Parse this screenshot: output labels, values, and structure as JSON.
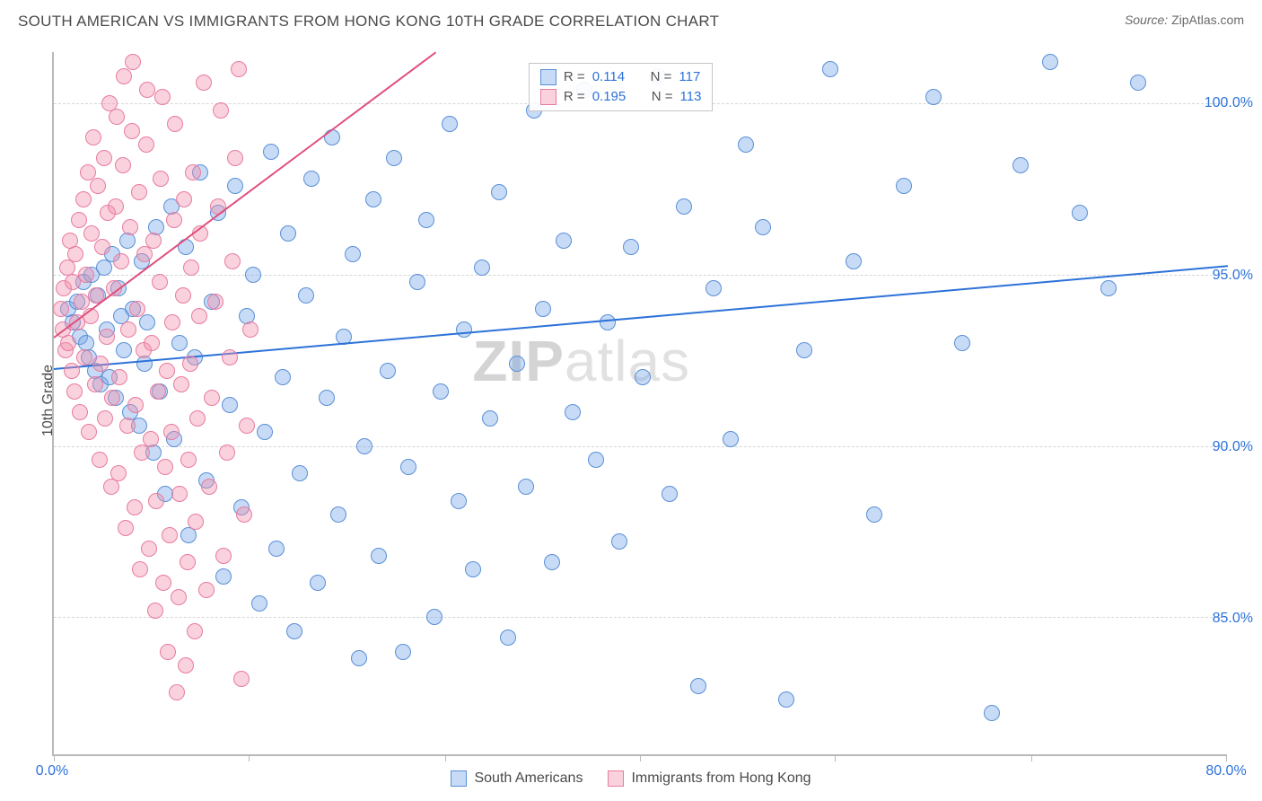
{
  "title": "SOUTH AMERICAN VS IMMIGRANTS FROM HONG KONG 10TH GRADE CORRELATION CHART",
  "source_label": "Source: ",
  "source_value": "ZipAtlas.com",
  "ylabel": "10th Grade",
  "watermark_a": "ZIP",
  "watermark_b": "atlas",
  "chart": {
    "type": "scatter",
    "background_color": "#ffffff",
    "axis_color": "#b9b9b9",
    "grid_color": "#d6d6d6",
    "tick_label_color": "#2d72d9",
    "label_fontsize": 16,
    "title_fontsize": 17,
    "xlim": [
      0,
      80
    ],
    "ylim": [
      81,
      101.5
    ],
    "xtick_positions": [
      0,
      13.3,
      26.7,
      40,
      53.3,
      66.7,
      80
    ],
    "xtick_labels": {
      "0": "0.0%",
      "80": "80.0%"
    },
    "ytick_positions": [
      85,
      90,
      95,
      100
    ],
    "ytick_labels": {
      "85": "85.0%",
      "90": "90.0%",
      "95": "95.0%",
      "100": "100.0%"
    },
    "series": [
      {
        "key": "south_americans",
        "label": "South Americans",
        "marker_fill": "rgba(114,164,232,0.40)",
        "marker_stroke": "#5a8fd6",
        "marker_radius": 9,
        "trend_color": "#2d72d9",
        "trend_width": 2,
        "trend": {
          "x1": 0,
          "y1": 92.3,
          "x2": 80,
          "y2": 95.3
        },
        "R": "0.114",
        "N": "117",
        "points": [
          [
            1.0,
            94.0
          ],
          [
            1.3,
            93.6
          ],
          [
            1.6,
            94.2
          ],
          [
            1.8,
            93.2
          ],
          [
            2.0,
            94.8
          ],
          [
            2.2,
            93.0
          ],
          [
            2.4,
            92.6
          ],
          [
            2.6,
            95.0
          ],
          [
            2.8,
            92.2
          ],
          [
            3.0,
            94.4
          ],
          [
            3.2,
            91.8
          ],
          [
            3.4,
            95.2
          ],
          [
            3.6,
            93.4
          ],
          [
            3.8,
            92.0
          ],
          [
            4.0,
            95.6
          ],
          [
            4.2,
            91.4
          ],
          [
            4.4,
            94.6
          ],
          [
            4.6,
            93.8
          ],
          [
            4.8,
            92.8
          ],
          [
            5.0,
            96.0
          ],
          [
            5.2,
            91.0
          ],
          [
            5.4,
            94.0
          ],
          [
            5.8,
            90.6
          ],
          [
            6.0,
            95.4
          ],
          [
            6.2,
            92.4
          ],
          [
            6.4,
            93.6
          ],
          [
            6.8,
            89.8
          ],
          [
            7.0,
            96.4
          ],
          [
            7.2,
            91.6
          ],
          [
            7.6,
            88.6
          ],
          [
            8.0,
            97.0
          ],
          [
            8.2,
            90.2
          ],
          [
            8.6,
            93.0
          ],
          [
            9.0,
            95.8
          ],
          [
            9.2,
            87.4
          ],
          [
            9.6,
            92.6
          ],
          [
            10.0,
            98.0
          ],
          [
            10.4,
            89.0
          ],
          [
            10.8,
            94.2
          ],
          [
            11.2,
            96.8
          ],
          [
            11.6,
            86.2
          ],
          [
            12.0,
            91.2
          ],
          [
            12.4,
            97.6
          ],
          [
            12.8,
            88.2
          ],
          [
            13.2,
            93.8
          ],
          [
            13.6,
            95.0
          ],
          [
            14.0,
            85.4
          ],
          [
            14.4,
            90.4
          ],
          [
            14.8,
            98.6
          ],
          [
            15.2,
            87.0
          ],
          [
            15.6,
            92.0
          ],
          [
            16.0,
            96.2
          ],
          [
            16.4,
            84.6
          ],
          [
            16.8,
            89.2
          ],
          [
            17.2,
            94.4
          ],
          [
            17.6,
            97.8
          ],
          [
            18.0,
            86.0
          ],
          [
            18.6,
            91.4
          ],
          [
            19.0,
            99.0
          ],
          [
            19.4,
            88.0
          ],
          [
            19.8,
            93.2
          ],
          [
            20.4,
            95.6
          ],
          [
            20.8,
            83.8
          ],
          [
            21.2,
            90.0
          ],
          [
            21.8,
            97.2
          ],
          [
            22.2,
            86.8
          ],
          [
            22.8,
            92.2
          ],
          [
            23.2,
            98.4
          ],
          [
            23.8,
            84.0
          ],
          [
            24.2,
            89.4
          ],
          [
            24.8,
            94.8
          ],
          [
            25.4,
            96.6
          ],
          [
            26.0,
            85.0
          ],
          [
            26.4,
            91.6
          ],
          [
            27.0,
            99.4
          ],
          [
            27.6,
            88.4
          ],
          [
            28.0,
            93.4
          ],
          [
            28.6,
            86.4
          ],
          [
            29.2,
            95.2
          ],
          [
            29.8,
            90.8
          ],
          [
            30.4,
            97.4
          ],
          [
            31.0,
            84.4
          ],
          [
            31.6,
            92.4
          ],
          [
            32.2,
            88.8
          ],
          [
            32.8,
            99.8
          ],
          [
            33.4,
            94.0
          ],
          [
            34.0,
            86.6
          ],
          [
            34.8,
            96.0
          ],
          [
            35.4,
            91.0
          ],
          [
            36.2,
            100.4
          ],
          [
            37.0,
            89.6
          ],
          [
            37.8,
            93.6
          ],
          [
            38.6,
            87.2
          ],
          [
            39.4,
            95.8
          ],
          [
            40.2,
            92.0
          ],
          [
            41.2,
            100.8
          ],
          [
            42.0,
            88.6
          ],
          [
            43.0,
            97.0
          ],
          [
            44.0,
            83.0
          ],
          [
            45.0,
            94.6
          ],
          [
            46.2,
            90.2
          ],
          [
            47.2,
            98.8
          ],
          [
            48.4,
            96.4
          ],
          [
            50.0,
            82.6
          ],
          [
            51.2,
            92.8
          ],
          [
            53.0,
            101.0
          ],
          [
            54.6,
            95.4
          ],
          [
            56.0,
            88.0
          ],
          [
            58.0,
            97.6
          ],
          [
            60.0,
            100.2
          ],
          [
            62.0,
            93.0
          ],
          [
            64.0,
            82.2
          ],
          [
            66.0,
            98.2
          ],
          [
            68.0,
            101.2
          ],
          [
            70.0,
            96.8
          ],
          [
            72.0,
            94.6
          ],
          [
            74.0,
            100.6
          ]
        ]
      },
      {
        "key": "hong_kong",
        "label": "Immigrants from Hong Kong",
        "marker_fill": "rgba(243,143,170,0.40)",
        "marker_stroke": "#e77ba0",
        "marker_radius": 9,
        "trend_color": "#e04f7d",
        "trend_width": 2,
        "trend": {
          "x1": 0,
          "y1": 93.2,
          "x2": 26,
          "y2": 101.5
        },
        "R": "0.195",
        "N": "113",
        "points": [
          [
            0.5,
            94.0
          ],
          [
            0.6,
            93.4
          ],
          [
            0.7,
            94.6
          ],
          [
            0.8,
            92.8
          ],
          [
            0.9,
            95.2
          ],
          [
            1.0,
            93.0
          ],
          [
            1.1,
            96.0
          ],
          [
            1.2,
            92.2
          ],
          [
            1.3,
            94.8
          ],
          [
            1.4,
            91.6
          ],
          [
            1.5,
            95.6
          ],
          [
            1.6,
            93.6
          ],
          [
            1.7,
            96.6
          ],
          [
            1.8,
            91.0
          ],
          [
            1.9,
            94.2
          ],
          [
            2.0,
            97.2
          ],
          [
            2.1,
            92.6
          ],
          [
            2.2,
            95.0
          ],
          [
            2.3,
            98.0
          ],
          [
            2.4,
            90.4
          ],
          [
            2.5,
            93.8
          ],
          [
            2.6,
            96.2
          ],
          [
            2.7,
            99.0
          ],
          [
            2.8,
            91.8
          ],
          [
            2.9,
            94.4
          ],
          [
            3.0,
            97.6
          ],
          [
            3.1,
            89.6
          ],
          [
            3.2,
            92.4
          ],
          [
            3.3,
            95.8
          ],
          [
            3.4,
            98.4
          ],
          [
            3.5,
            90.8
          ],
          [
            3.6,
            93.2
          ],
          [
            3.7,
            96.8
          ],
          [
            3.8,
            100.0
          ],
          [
            3.9,
            88.8
          ],
          [
            4.0,
            91.4
          ],
          [
            4.1,
            94.6
          ],
          [
            4.2,
            97.0
          ],
          [
            4.3,
            99.6
          ],
          [
            4.4,
            89.2
          ],
          [
            4.5,
            92.0
          ],
          [
            4.6,
            95.4
          ],
          [
            4.7,
            98.2
          ],
          [
            4.8,
            100.8
          ],
          [
            4.9,
            87.6
          ],
          [
            5.0,
            90.6
          ],
          [
            5.1,
            93.4
          ],
          [
            5.2,
            96.4
          ],
          [
            5.3,
            99.2
          ],
          [
            5.4,
            101.2
          ],
          [
            5.5,
            88.2
          ],
          [
            5.6,
            91.2
          ],
          [
            5.7,
            94.0
          ],
          [
            5.8,
            97.4
          ],
          [
            5.9,
            86.4
          ],
          [
            6.0,
            89.8
          ],
          [
            6.1,
            92.8
          ],
          [
            6.2,
            95.6
          ],
          [
            6.3,
            98.8
          ],
          [
            6.4,
            100.4
          ],
          [
            6.5,
            87.0
          ],
          [
            6.6,
            90.2
          ],
          [
            6.7,
            93.0
          ],
          [
            6.8,
            96.0
          ],
          [
            6.9,
            85.2
          ],
          [
            7.0,
            88.4
          ],
          [
            7.1,
            91.6
          ],
          [
            7.2,
            94.8
          ],
          [
            7.3,
            97.8
          ],
          [
            7.4,
            100.2
          ],
          [
            7.5,
            86.0
          ],
          [
            7.6,
            89.4
          ],
          [
            7.7,
            92.2
          ],
          [
            7.8,
            84.0
          ],
          [
            7.9,
            87.4
          ],
          [
            8.0,
            90.4
          ],
          [
            8.1,
            93.6
          ],
          [
            8.2,
            96.6
          ],
          [
            8.3,
            99.4
          ],
          [
            8.4,
            82.8
          ],
          [
            8.5,
            85.6
          ],
          [
            8.6,
            88.6
          ],
          [
            8.7,
            91.8
          ],
          [
            8.8,
            94.4
          ],
          [
            8.9,
            97.2
          ],
          [
            9.0,
            83.6
          ],
          [
            9.1,
            86.6
          ],
          [
            9.2,
            89.6
          ],
          [
            9.3,
            92.4
          ],
          [
            9.4,
            95.2
          ],
          [
            9.5,
            98.0
          ],
          [
            9.6,
            84.6
          ],
          [
            9.7,
            87.8
          ],
          [
            9.8,
            90.8
          ],
          [
            9.9,
            93.8
          ],
          [
            10.0,
            96.2
          ],
          [
            10.2,
            100.6
          ],
          [
            10.4,
            85.8
          ],
          [
            10.6,
            88.8
          ],
          [
            10.8,
            91.4
          ],
          [
            11.0,
            94.2
          ],
          [
            11.2,
            97.0
          ],
          [
            11.4,
            99.8
          ],
          [
            11.6,
            86.8
          ],
          [
            11.8,
            89.8
          ],
          [
            12.0,
            92.6
          ],
          [
            12.2,
            95.4
          ],
          [
            12.4,
            98.4
          ],
          [
            12.6,
            101.0
          ],
          [
            12.8,
            83.2
          ],
          [
            13.0,
            88.0
          ],
          [
            13.2,
            90.6
          ],
          [
            13.4,
            93.4
          ]
        ]
      }
    ],
    "stats_box": {
      "left_pct": 40.5,
      "top_pct": 1.5,
      "row_labels": {
        "r": "R  =",
        "n": "N  ="
      }
    }
  },
  "bottom_legend": {
    "items": [
      "south_americans",
      "hong_kong"
    ]
  }
}
